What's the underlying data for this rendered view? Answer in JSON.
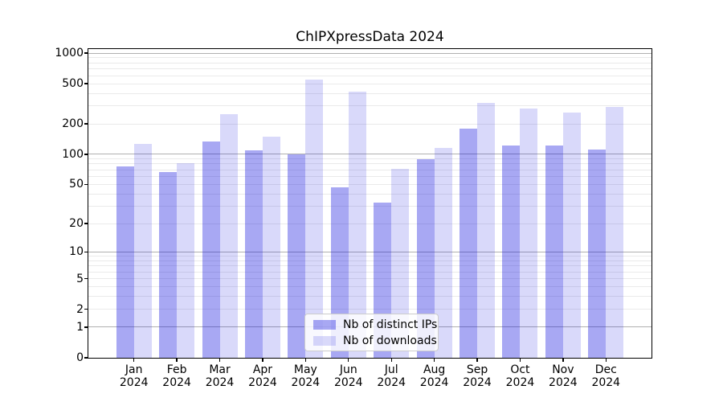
{
  "figure": {
    "background_color": "#ffffff"
  },
  "chart_data": {
    "type": "bar",
    "title": "ChIPXpressData 2024",
    "categories": [
      "Jan 2024",
      "Feb 2024",
      "Mar 2024",
      "Apr 2024",
      "May 2024",
      "Jun 2024",
      "Jul 2024",
      "Aug 2024",
      "Sep 2024",
      "Oct 2024",
      "Nov 2024",
      "Dec 2024"
    ],
    "series": [
      {
        "name": "Nb of distinct IPs",
        "color": "rgba(0,0,220,0.34)",
        "color_hex_on_white": "#aaaaf3",
        "values": [
          76,
          66,
          135,
          109,
          100,
          47,
          33,
          89,
          178,
          123,
          121,
          111
        ]
      },
      {
        "name": "Nb of downloads",
        "color": "rgba(0,0,222,0.15)",
        "color_hex_on_white": "#d9d9fa",
        "values": [
          127,
          82,
          250,
          150,
          545,
          414,
          72,
          116,
          322,
          284,
          258,
          293
        ]
      }
    ],
    "xlabel": "",
    "ylabel": "",
    "yscale": "log1p",
    "yticks": [
      0,
      1,
      2,
      5,
      10,
      20,
      50,
      100,
      200,
      500,
      1000
    ],
    "ylim": [
      0,
      1096
    ],
    "grid": "on",
    "grid_major_color": "#b0b0b0",
    "grid_minor_color": "#eaeaea",
    "legend_position": "lower center"
  }
}
